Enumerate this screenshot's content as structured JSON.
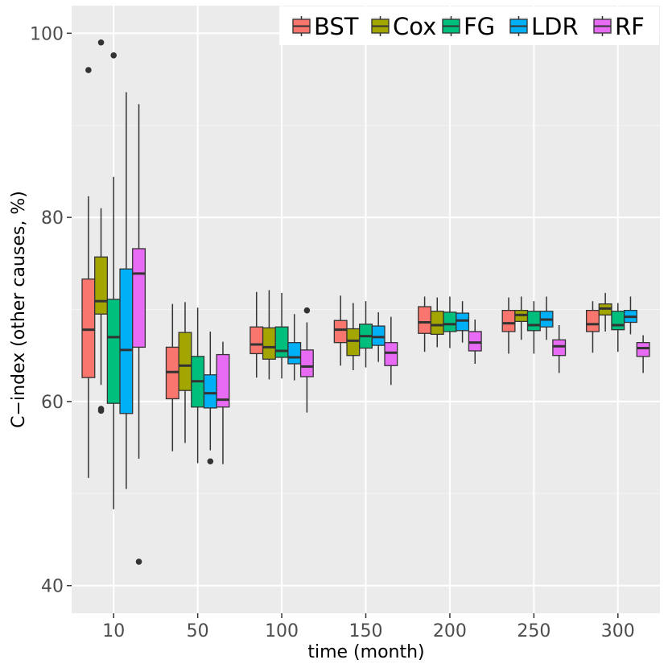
{
  "chart_data": {
    "type": "boxplot",
    "xlabel": "time (month)",
    "ylabel": "C−index (other causes, %)",
    "categories": [
      "10",
      "50",
      "100",
      "150",
      "200",
      "250",
      "300"
    ],
    "ylim": [
      37,
      103
    ],
    "y_ticks": [
      40,
      60,
      80,
      100
    ],
    "y_tick_labels": [
      "40",
      "60",
      "80",
      "100"
    ],
    "grid": true,
    "legend_position": "top-right",
    "series": [
      {
        "name": "BST",
        "color": "#F8766D",
        "boxes": [
          {
            "min": 51.7,
            "q1": 62.6,
            "median": 67.8,
            "q3": 73.3,
            "max": 82.3,
            "outliers": [
              96.0
            ]
          },
          {
            "min": 54.6,
            "q1": 60.3,
            "median": 63.2,
            "q3": 65.9,
            "max": 70.6,
            "outliers": []
          },
          {
            "min": 62.6,
            "q1": 65.2,
            "median": 66.2,
            "q3": 68.1,
            "max": 71.9,
            "outliers": []
          },
          {
            "min": 63.9,
            "q1": 66.4,
            "median": 67.8,
            "q3": 68.8,
            "max": 71.5,
            "outliers": []
          },
          {
            "min": 65.4,
            "q1": 67.4,
            "median": 68.6,
            "q3": 70.3,
            "max": 71.4,
            "outliers": []
          },
          {
            "min": 65.2,
            "q1": 67.6,
            "median": 68.5,
            "q3": 69.9,
            "max": 71.3,
            "outliers": []
          },
          {
            "min": 65.3,
            "q1": 67.6,
            "median": 68.4,
            "q3": 69.9,
            "max": 70.9,
            "outliers": []
          }
        ]
      },
      {
        "name": "Cox",
        "color": "#A3A500",
        "boxes": [
          {
            "min": 61.8,
            "q1": 69.5,
            "median": 70.9,
            "q3": 75.7,
            "max": 81.0,
            "outliers": [
              99.0,
              59.2,
              59.0
            ]
          },
          {
            "min": 55.5,
            "q1": 61.2,
            "median": 63.9,
            "q3": 67.5,
            "max": 70.8,
            "outliers": []
          },
          {
            "min": 62.4,
            "q1": 64.6,
            "median": 65.9,
            "q3": 68.0,
            "max": 72.1,
            "outliers": []
          },
          {
            "min": 63.4,
            "q1": 65.0,
            "median": 66.6,
            "q3": 67.9,
            "max": 70.7,
            "outliers": []
          },
          {
            "min": 65.9,
            "q1": 67.3,
            "median": 68.3,
            "q3": 69.8,
            "max": 71.3,
            "outliers": []
          },
          {
            "min": 66.7,
            "q1": 68.7,
            "median": 69.4,
            "q3": 69.9,
            "max": 71.4,
            "outliers": []
          },
          {
            "min": 67.6,
            "q1": 69.4,
            "median": 70.1,
            "q3": 70.6,
            "max": 71.8,
            "outliers": []
          }
        ]
      },
      {
        "name": "FG",
        "color": "#00BF7D",
        "boxes": [
          {
            "min": 48.3,
            "q1": 59.8,
            "median": 67.0,
            "q3": 71.1,
            "max": 84.4,
            "outliers": [
              97.6
            ]
          },
          {
            "min": 53.3,
            "q1": 59.4,
            "median": 62.2,
            "q3": 64.9,
            "max": 70.2,
            "outliers": []
          },
          {
            "min": 62.5,
            "q1": 64.8,
            "median": 65.5,
            "q3": 68.1,
            "max": 71.8,
            "outliers": []
          },
          {
            "min": 63.7,
            "q1": 65.8,
            "median": 67.1,
            "q3": 68.4,
            "max": 70.9,
            "outliers": []
          },
          {
            "min": 65.8,
            "q1": 67.6,
            "median": 68.4,
            "q3": 69.7,
            "max": 71.4,
            "outliers": []
          },
          {
            "min": 65.2,
            "q1": 67.7,
            "median": 68.3,
            "q3": 69.8,
            "max": 70.9,
            "outliers": []
          },
          {
            "min": 65.4,
            "q1": 67.8,
            "median": 68.3,
            "q3": 69.8,
            "max": 70.7,
            "outliers": []
          }
        ]
      },
      {
        "name": "LDR",
        "color": "#00B0F6",
        "boxes": [
          {
            "min": 50.5,
            "q1": 58.7,
            "median": 65.6,
            "q3": 74.4,
            "max": 93.6,
            "outliers": []
          },
          {
            "min": 54.7,
            "q1": 59.3,
            "median": 60.9,
            "q3": 62.9,
            "max": 67.6,
            "outliers": [
              53.5
            ]
          },
          {
            "min": 62.3,
            "q1": 64.1,
            "median": 64.8,
            "q3": 66.4,
            "max": 69.5,
            "outliers": []
          },
          {
            "min": 64.3,
            "q1": 66.1,
            "median": 67.0,
            "q3": 68.2,
            "max": 69.7,
            "outliers": []
          },
          {
            "min": 66.4,
            "q1": 67.7,
            "median": 68.8,
            "q3": 69.6,
            "max": 70.9,
            "outliers": []
          },
          {
            "min": 66.7,
            "q1": 68.1,
            "median": 68.9,
            "q3": 69.8,
            "max": 71.4,
            "outliers": []
          },
          {
            "min": 67.3,
            "q1": 68.6,
            "median": 69.2,
            "q3": 69.9,
            "max": 71.4,
            "outliers": []
          }
        ]
      },
      {
        "name": "RF",
        "color": "#E76BF3",
        "boxes": [
          {
            "min": 53.8,
            "q1": 65.9,
            "median": 73.9,
            "q3": 76.6,
            "max": 92.3,
            "outliers": [
              42.6
            ]
          },
          {
            "min": 53.2,
            "q1": 59.4,
            "median": 60.2,
            "q3": 65.1,
            "max": 66.5,
            "outliers": []
          },
          {
            "min": 58.8,
            "q1": 62.7,
            "median": 63.8,
            "q3": 65.6,
            "max": 68.6,
            "outliers": [
              69.9
            ]
          },
          {
            "min": 61.8,
            "q1": 63.9,
            "median": 65.3,
            "q3": 66.4,
            "max": 69.2,
            "outliers": []
          },
          {
            "min": 64.1,
            "q1": 65.5,
            "median": 66.4,
            "q3": 67.6,
            "max": 68.9,
            "outliers": []
          },
          {
            "min": 63.1,
            "q1": 65.0,
            "median": 66.0,
            "q3": 66.7,
            "max": 68.3,
            "outliers": []
          },
          {
            "min": 63.1,
            "q1": 64.9,
            "median": 65.8,
            "q3": 66.4,
            "max": 67.2,
            "outliers": []
          }
        ]
      }
    ]
  },
  "colors": {
    "panel_background": "#EBEBEB",
    "grid_major": "#FFFFFF",
    "grid_minor": "#F5F5F5",
    "box_line": "#333333",
    "axis_text": "#4D4D4D",
    "title_text": "#000000"
  }
}
